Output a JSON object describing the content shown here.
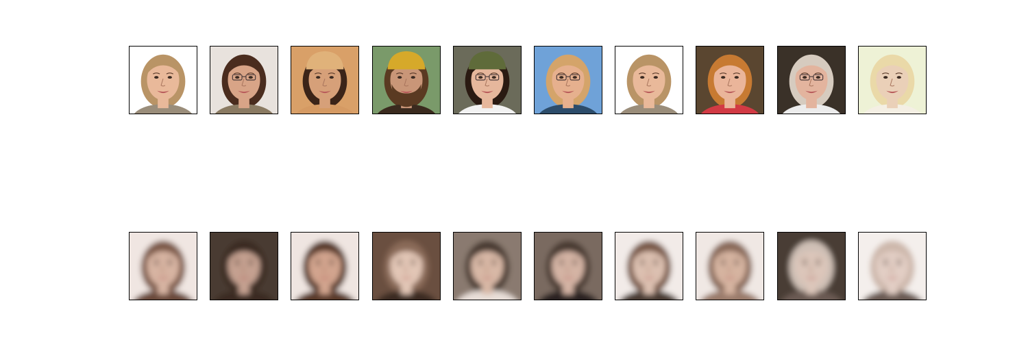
{
  "rows": [
    {
      "id": "original",
      "faces": [
        {
          "bg": "#ffffff",
          "skin": "#e9b99a",
          "hair": "#b99466",
          "shirt": "#9a8d7a",
          "glasses": false,
          "hat": "",
          "beard": false,
          "blur": 0
        },
        {
          "bg": "#e8e2dd",
          "skin": "#d8a487",
          "hair": "#4a2c1e",
          "shirt": "#8a7a62",
          "glasses": true,
          "hat": "",
          "beard": false,
          "blur": 0
        },
        {
          "bg": "#d9a068",
          "skin": "#d6a079",
          "hair": "#3b2418",
          "shirt": "#d59a63",
          "glasses": false,
          "hat": "#e0b27a",
          "beard": false,
          "blur": 0
        },
        {
          "bg": "#7a9a6a",
          "skin": "#c99678",
          "hair": "#5a3a22",
          "shirt": "#3a2a1e",
          "glasses": false,
          "hat": "#d6a92a",
          "beard": true,
          "blur": 0
        },
        {
          "bg": "#6b6b5a",
          "skin": "#e6b79c",
          "hair": "#2a1a12",
          "shirt": "#f2f2f2",
          "glasses": true,
          "hat": "#5f6b3a",
          "beard": false,
          "blur": 0
        },
        {
          "bg": "#6fa2d8",
          "skin": "#e6b08e",
          "hair": "#d4a46a",
          "shirt": "#2c4c6a",
          "glasses": true,
          "hat": "",
          "beard": false,
          "blur": 0
        },
        {
          "bg": "#ffffff",
          "skin": "#e9b99a",
          "hair": "#b99466",
          "shirt": "#9a8d7a",
          "glasses": false,
          "hat": "",
          "beard": false,
          "blur": 0
        },
        {
          "bg": "#5a4630",
          "skin": "#eab59a",
          "hair": "#c77a32",
          "shirt": "#d23a44",
          "glasses": false,
          "hat": "",
          "beard": false,
          "blur": 0
        },
        {
          "bg": "#3a3128",
          "skin": "#e3b49e",
          "hair": "#d6cbbf",
          "shirt": "#ececec",
          "glasses": true,
          "hat": "",
          "beard": false,
          "blur": 0
        },
        {
          "bg": "#eef2d6",
          "skin": "#ead0b8",
          "hair": "#ead9a8",
          "shirt": "#f4efe4",
          "glasses": false,
          "hat": "",
          "beard": false,
          "blur": 0
        }
      ]
    },
    {
      "id": "reconstruction",
      "faces": [
        {
          "bg": "#f0e6e2",
          "skin": "#d7b4a2",
          "hair": "#7e5a48",
          "shirt": "#6a4a3a",
          "glasses": false,
          "hat": "",
          "beard": false,
          "blur": 4
        },
        {
          "bg": "#4a3a30",
          "skin": "#c4a090",
          "hair": "#3a2a22",
          "shirt": "#3a2a22",
          "glasses": false,
          "hat": "",
          "beard": false,
          "blur": 4
        },
        {
          "bg": "#efe5e1",
          "skin": "#d2a48e",
          "hair": "#5a3a2a",
          "shirt": "#5a3a2a",
          "glasses": false,
          "hat": "",
          "beard": false,
          "blur": 4
        },
        {
          "bg": "#6a5040",
          "skin": "#e2c6b6",
          "hair": "#8a6a58",
          "shirt": "#3a2a22",
          "glasses": false,
          "hat": "",
          "beard": false,
          "blur": 4
        },
        {
          "bg": "#8a7a70",
          "skin": "#d8b8a6",
          "hair": "#4a3a30",
          "shirt": "#e8ded8",
          "glasses": false,
          "hat": "",
          "beard": false,
          "blur": 4
        },
        {
          "bg": "#7a6a60",
          "skin": "#d4b4a4",
          "hair": "#4a3a32",
          "shirt": "#2a2220",
          "glasses": false,
          "hat": "",
          "beard": false,
          "blur": 4
        },
        {
          "bg": "#f2ebe8",
          "skin": "#dcc0b0",
          "hair": "#7a5a48",
          "shirt": "#4a3a30",
          "glasses": false,
          "hat": "",
          "beard": false,
          "blur": 4
        },
        {
          "bg": "#f0e8e4",
          "skin": "#d6b4a0",
          "hair": "#8a6a5a",
          "shirt": "#9a7a6a",
          "glasses": false,
          "hat": "",
          "beard": false,
          "blur": 4
        },
        {
          "bg": "#4a3e36",
          "skin": "#dcc6ba",
          "hair": "#cfc0b6",
          "shirt": "#6a5a52",
          "glasses": false,
          "hat": "",
          "beard": false,
          "blur": 4
        },
        {
          "bg": "#f4efec",
          "skin": "#e2cec4",
          "hair": "#cdb8ac",
          "shirt": "#6a5a52",
          "glasses": false,
          "hat": "",
          "beard": false,
          "blur": 4
        }
      ]
    }
  ]
}
